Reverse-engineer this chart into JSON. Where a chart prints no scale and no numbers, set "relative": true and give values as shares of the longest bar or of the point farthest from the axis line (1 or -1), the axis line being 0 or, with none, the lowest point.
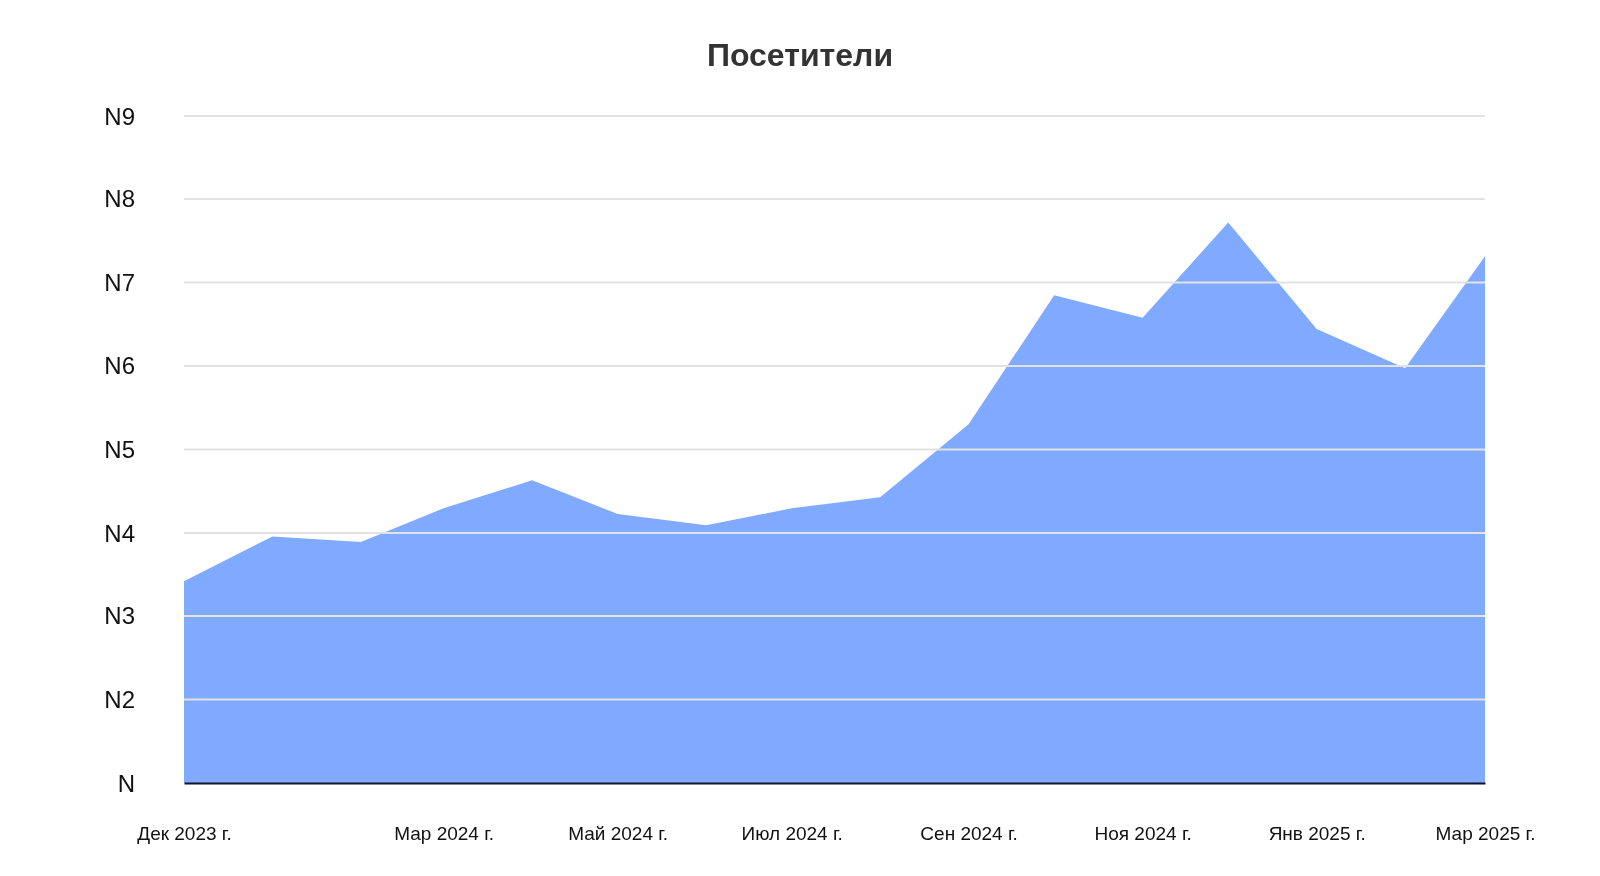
{
  "chart_data": {
    "type": "area",
    "title": "Посетители",
    "relative": true,
    "x": [
      "2023-12",
      "2024-01",
      "2024-02",
      "2024-03",
      "2024-04",
      "2024-05",
      "2024-06",
      "2024-07",
      "2024-08",
      "2024-09",
      "2024-10",
      "2024-11",
      "2024-12",
      "2025-01",
      "2025-02",
      "2025-03"
    ],
    "series": [
      {
        "color": "#7faaff",
        "values": [
          0.36,
          0.44,
          0.43,
          0.49,
          0.54,
          0.48,
          0.46,
          0.49,
          0.51,
          0.64,
          0.87,
          0.83,
          1,
          0.81,
          0.74,
          0.94
        ]
      }
    ],
    "xlim": [
      "2023-12",
      "2025-03"
    ],
    "xticks": [
      {
        "value": "2023-12",
        "label": "Дек 2023 г."
      },
      {
        "value": "2024-03",
        "label": "Мар 2024 г."
      },
      {
        "value": "2024-05",
        "label": "Май 2024 г."
      },
      {
        "value": "2024-07",
        "label": "Июл 2024 г."
      },
      {
        "value": "2024-09",
        "label": "Сен 2024 г."
      },
      {
        "value": "2024-11",
        "label": "Ноя 2024 г."
      },
      {
        "value": "2025-01",
        "label": "Янв 2025 г."
      },
      {
        "value": "2025-03",
        "label": "Мар 2025 г."
      }
    ],
    "annotations": [
      "N"
    ],
    "ref_lines": [
      {
        "axis": "y",
        "value": 0.149,
        "label": "N2",
        "color": "#e2e2e2"
      },
      {
        "axis": "y",
        "value": 0.298,
        "label": "N3",
        "color": "#e2e2e2"
      },
      {
        "axis": "y",
        "value": 0.446,
        "label": "N4",
        "color": "#e2e2e2"
      },
      {
        "axis": "y",
        "value": 0.595,
        "label": "N5",
        "color": "#e2e2e2"
      },
      {
        "axis": "y",
        "value": 0.744,
        "label": "N6",
        "color": "#e2e2e2"
      },
      {
        "axis": "y",
        "value": 0.893,
        "label": "N7",
        "color": "#e2e2e2"
      },
      {
        "axis": "y",
        "value": 1.042,
        "label": "N8",
        "color": "#e2e2e2"
      },
      {
        "axis": "y",
        "value": 1.19,
        "label": "N9",
        "color": "#e2e2e2"
      }
    ]
  }
}
